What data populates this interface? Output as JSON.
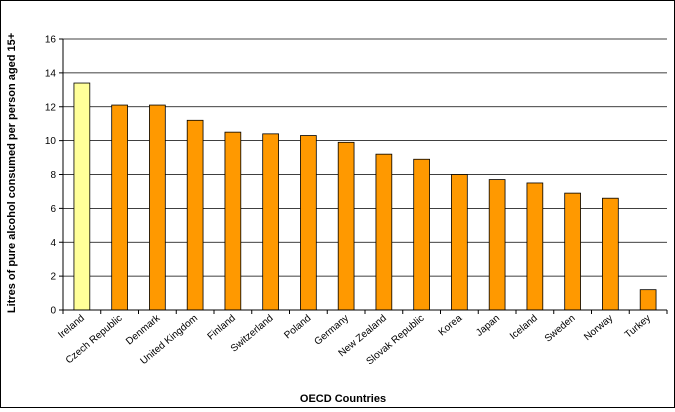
{
  "chart_data": {
    "type": "bar",
    "xlabel": "OECD Countries",
    "ylabel": "Litres of pure alcohol consumed per person aged 15+",
    "ylim": [
      0,
      16
    ],
    "yticks": [
      0,
      2,
      4,
      6,
      8,
      10,
      12,
      14,
      16
    ],
    "grid": true,
    "legend": "none",
    "categories": [
      "Ireland",
      "Czech Republic",
      "Denmark",
      "United Kingdom",
      "Finland",
      "Switzerland",
      "Poland",
      "Germany",
      "New Zealand",
      "Slovak Republic",
      "Korea",
      "Japan",
      "Iceland",
      "Sweden",
      "Norway",
      "Turkey"
    ],
    "values": [
      13.4,
      12.1,
      12.1,
      11.2,
      10.5,
      10.4,
      10.3,
      9.9,
      9.2,
      8.9,
      8.0,
      7.7,
      7.5,
      6.9,
      6.6,
      1.2
    ],
    "colors": {
      "highlight": "#FFFF99",
      "default": "#FF9900",
      "highlight_category": "Ireland"
    }
  }
}
